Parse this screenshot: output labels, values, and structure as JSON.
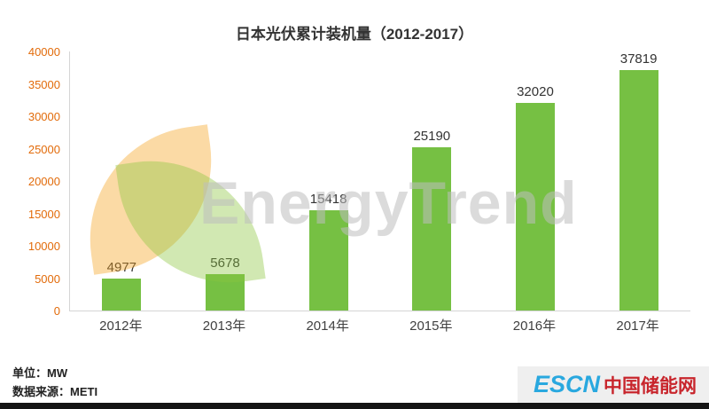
{
  "title": "日本光伏累计装机量（2012-2017）",
  "chart_data": {
    "type": "bar",
    "title": "日本光伏累计装机量（2012-2017）",
    "categories": [
      "2012年",
      "2013年",
      "2014年",
      "2015年",
      "2016年",
      "2017年"
    ],
    "values": [
      4977,
      5678,
      15418,
      25190,
      32020,
      37819
    ],
    "xlabel": "",
    "ylabel": "",
    "ylim": [
      0,
      40000
    ],
    "yticks": [
      0,
      5000,
      10000,
      15000,
      20000,
      25000,
      30000,
      35000,
      40000
    ],
    "grid": false,
    "legend": "none",
    "bar_color": "#76c043",
    "ytick_color": "#e26b0a"
  },
  "footer": {
    "unit_label": "单位：MW",
    "source_label": "数据来源：METI"
  },
  "watermark": {
    "text": "EnergyTrend"
  },
  "logo": {
    "en": "ESCN",
    "cn": "中国储能网"
  }
}
